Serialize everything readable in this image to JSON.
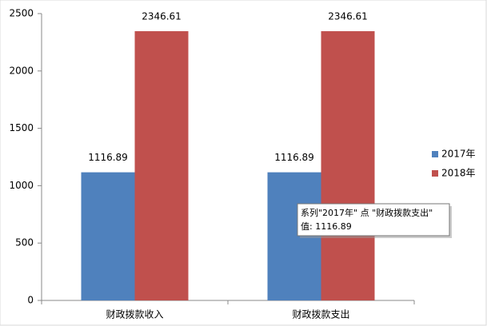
{
  "chart_data": {
    "type": "bar",
    "categories": [
      "财政拨款收入",
      "财政拨款支出"
    ],
    "series": [
      {
        "name": "2017年",
        "color": "#4f81bd",
        "values": [
          1116.89,
          1116.89
        ]
      },
      {
        "name": "2018年",
        "color": "#c0504d",
        "values": [
          2346.61,
          2346.61
        ]
      }
    ],
    "ylim": [
      0,
      2500
    ],
    "yticks": [
      0,
      500,
      1000,
      1500,
      2000,
      2500
    ],
    "grid": false,
    "legend": "right",
    "tooltip": {
      "line1": "系列\"2017年\" 点 \"财政拨款支出\"",
      "line2": "值: 1116.89"
    }
  }
}
